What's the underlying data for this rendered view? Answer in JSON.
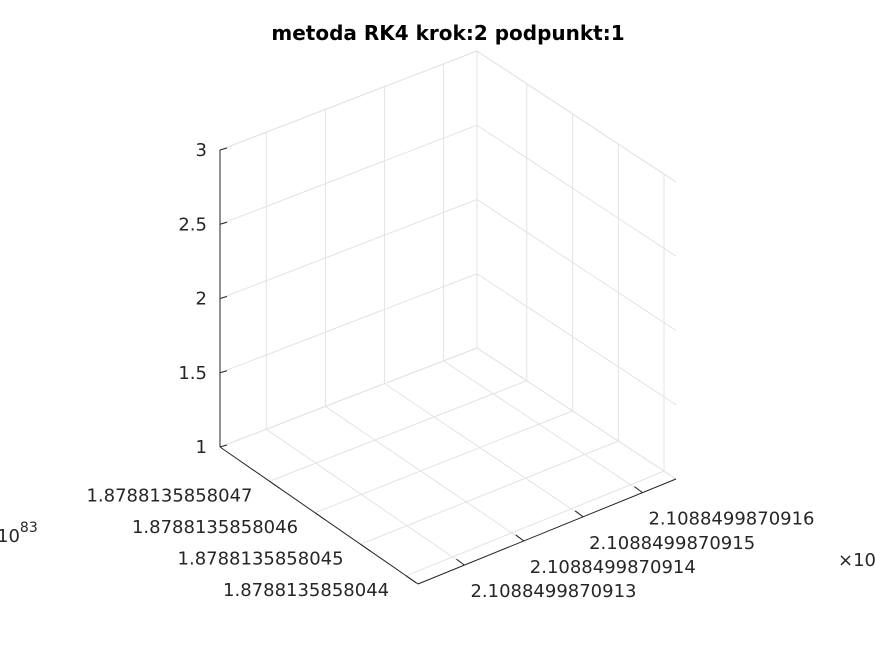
{
  "chart_data": {
    "type": "line",
    "title": "metoda RK4 krok:2 podpunkt:1",
    "view": "3d",
    "grid": true,
    "x_axis": {
      "ticks": [
        "2.1088499870913",
        "2.1088499870914",
        "2.1088499870915",
        "2.1088499870916"
      ],
      "exponent_label": "×10"
    },
    "y_axis": {
      "ticks": [
        "1.8788135858044",
        "1.8788135858045",
        "1.8788135858046",
        "1.8788135858047"
      ],
      "exponent_label": "10",
      "exponent": "83"
    },
    "z_axis": {
      "ticks": [
        "1",
        "1.5",
        "2",
        "2.5",
        "3"
      ],
      "zlim": [
        1,
        3
      ]
    },
    "series": []
  }
}
